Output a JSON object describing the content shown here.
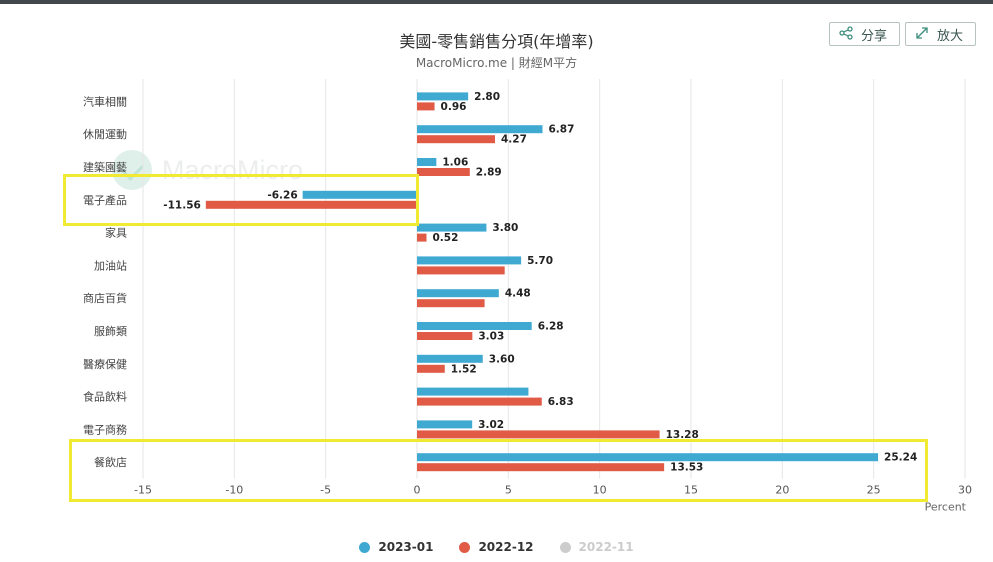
{
  "header": {
    "title": "美國-零售銷售分項(年增率)",
    "subtitle": "MacroMicro.me | 財經M平方",
    "share_label": "分享",
    "zoom_label": "放大"
  },
  "watermark": "MacroMicro",
  "colors": {
    "series1": "#3fa9d2",
    "series2": "#e05a45",
    "series3_inactive": "#cccccc",
    "highlight": "#f0ea32"
  },
  "legend": [
    {
      "name": "2023-01",
      "color": "#3fa9d2",
      "active": true
    },
    {
      "name": "2022-12",
      "color": "#e05a45",
      "active": true
    },
    {
      "name": "2022-11",
      "color": "#cccccc",
      "active": false
    }
  ],
  "chart_data": {
    "type": "bar",
    "orientation": "horizontal",
    "categories": [
      "汽車相關",
      "休閒運動",
      "建築園藝",
      "電子產品",
      "家具",
      "加油站",
      "商店百貨",
      "服飾類",
      "醫療保健",
      "食品飲料",
      "電子商務",
      "餐飲店"
    ],
    "series": [
      {
        "name": "2023-01",
        "values": [
          2.8,
          6.87,
          1.06,
          -6.26,
          3.8,
          5.7,
          4.48,
          6.28,
          3.6,
          6.1,
          3.02,
          25.24
        ],
        "labels": [
          "2.80",
          "6.87",
          "1.06",
          "-6.26",
          "3.80",
          "5.70",
          "4.48",
          "6.28",
          "3.60",
          "",
          "3.02",
          "25.24"
        ]
      },
      {
        "name": "2022-12",
        "values": [
          0.96,
          4.27,
          2.89,
          -11.56,
          0.52,
          4.8,
          3.7,
          3.03,
          1.52,
          6.83,
          13.28,
          13.53
        ],
        "labels": [
          "0.96",
          "4.27",
          "2.89",
          "-11.56",
          "0.52",
          "",
          "",
          "3.03",
          "1.52",
          "6.83",
          "13.28",
          "13.53"
        ]
      }
    ],
    "xlim": [
      -15,
      30
    ],
    "xticks": [
      -15,
      -10,
      -5,
      0,
      5,
      10,
      15,
      20,
      25,
      30
    ],
    "xlabel": "Percent",
    "grid": true,
    "legend_position": "bottom",
    "highlighted_categories": [
      "電子產品",
      "餐飲店"
    ]
  }
}
